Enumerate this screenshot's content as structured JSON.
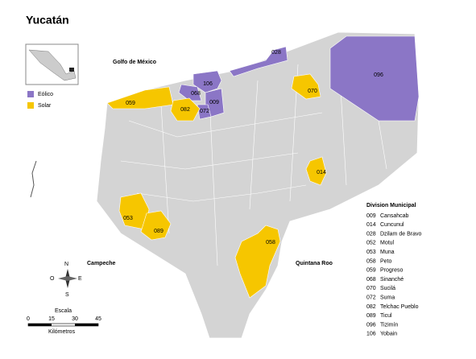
{
  "title": "Yucatán",
  "places": [
    "Golfo de México",
    "Campeche",
    "Quintana Roo"
  ],
  "legend": [
    {
      "label": "Eólico",
      "color": "#8b76c6",
      "zones": [
        "096",
        "028",
        "106",
        "068",
        "009",
        "072"
      ]
    },
    {
      "label": "Solar",
      "color": "#f6c600",
      "zones": [
        "059",
        "082",
        "070",
        "014",
        "053",
        "089",
        "058"
      ]
    }
  ],
  "municipalities": {
    "title": "Division Municipal",
    "items": [
      {
        "code": "009",
        "name": "Cansahcab"
      },
      {
        "code": "014",
        "name": "Cuncunul"
      },
      {
        "code": "028",
        "name": "Dzilam de Bravo"
      },
      {
        "code": "052",
        "name": "Motul"
      },
      {
        "code": "053",
        "name": "Muna"
      },
      {
        "code": "058",
        "name": "Peto"
      },
      {
        "code": "059",
        "name": "Progreso"
      },
      {
        "code": "068",
        "name": "Sinanché"
      },
      {
        "code": "070",
        "name": "Sucilá"
      },
      {
        "code": "072",
        "name": "Suma"
      },
      {
        "code": "082",
        "name": "Telchac Pueblo"
      },
      {
        "code": "089",
        "name": "Ticul"
      },
      {
        "code": "096",
        "name": "Tizimín"
      },
      {
        "code": "106",
        "name": "Yobain"
      }
    ]
  },
  "compass": [
    "N",
    "S",
    "E",
    "O"
  ],
  "scale": {
    "title": "Escala",
    "ticks": [
      "0",
      "15",
      "30",
      "45"
    ],
    "unit": "Kilómetros"
  }
}
